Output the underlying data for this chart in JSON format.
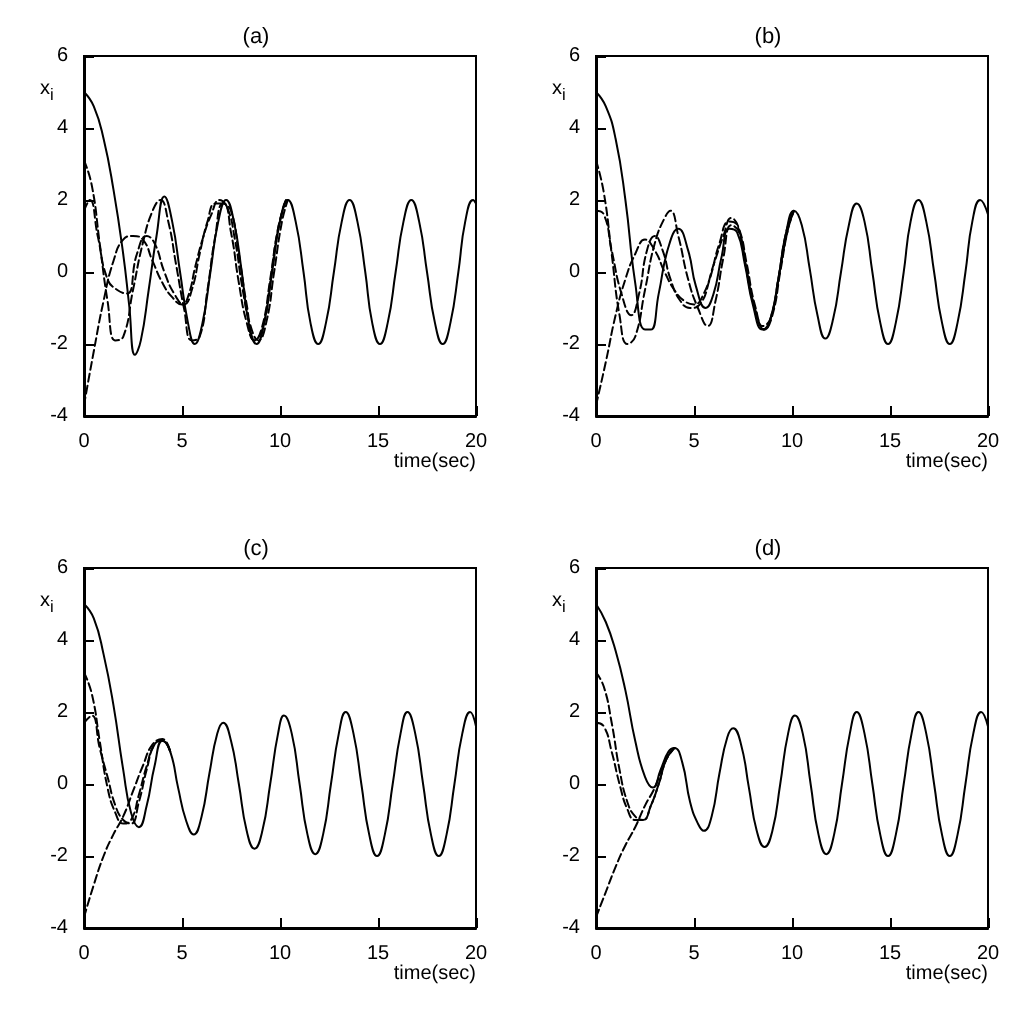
{
  "chart_data": [
    {
      "type": "line",
      "title": "(a)",
      "xlabel": "time(sec)",
      "ylabel": "x$_{i}$",
      "xlim": [
        0,
        20
      ],
      "ylim": [
        -4,
        6
      ],
      "xticks": [
        0,
        5,
        10,
        15,
        20
      ],
      "yticks": [
        -4,
        -2,
        0,
        2,
        4,
        6
      ],
      "grid": false,
      "marker": "none",
      "series": [
        {
          "color": "#000000",
          "line_style": "solid",
          "x": [
            0,
            0.5,
            1,
            1.5,
            2,
            2.3,
            2.6,
            2.9,
            3.3,
            3.7,
            4.1,
            4.5,
            4.9,
            5.3,
            5.65,
            6.05,
            6.45,
            6.85,
            7.25,
            7.65,
            8.05,
            8.4,
            8.8,
            9.2,
            9.6,
            10.0,
            10.4,
            10.8,
            11.2,
            11.55,
            11.95,
            12.35,
            12.75,
            13.15,
            13.55,
            13.95,
            14.35,
            14.7,
            15.1,
            15.5,
            15.9,
            16.3,
            16.7,
            17.1,
            17.5,
            17.9,
            18.3,
            18.7,
            19.1,
            19.45,
            19.85,
            20
          ],
          "values": [
            5,
            4.6,
            3.7,
            2.3,
            0.5,
            -0.9,
            -2.3,
            -1.9,
            -0.5,
            1.0,
            2.1,
            1.4,
            0,
            -1.4,
            -2,
            -1.4,
            0,
            1.4,
            2,
            1.4,
            0,
            -1.4,
            -2,
            -1.4,
            0,
            1.4,
            2,
            1.4,
            0,
            -1.4,
            -2,
            -1.4,
            0,
            1.4,
            2,
            1.4,
            0,
            -1.4,
            -2,
            -1.4,
            0,
            1.4,
            2,
            1.4,
            0,
            -1.4,
            -2,
            -1.4,
            0,
            1.4,
            2,
            1.9
          ]
        },
        {
          "color": "#000000",
          "line_style": "dashed",
          "x": [
            0,
            0.4,
            0.8,
            1.2,
            1.6,
            2.0,
            2.5,
            3.0,
            3.5,
            3.9,
            4.3,
            4.7,
            5.1,
            5.5,
            5.9,
            6.3,
            6.7,
            7.1,
            7.5,
            7.9,
            8.3,
            8.7,
            9.1,
            9.5,
            9.9,
            10.3
          ],
          "values": [
            3.1,
            2.4,
            0.8,
            -0.8,
            -1.9,
            -1.8,
            -0.5,
            0.8,
            1.7,
            2.0,
            1.4,
            0.2,
            -1.0,
            -1.9,
            -1.8,
            -0.5,
            1.0,
            1.9,
            1.7,
            0.5,
            -0.9,
            -1.9,
            -1.6,
            -0.3,
            1.2,
            2.0
          ]
        },
        {
          "color": "#000000",
          "line_style": "dashed",
          "x": [
            0,
            0.3,
            0.7,
            1.2,
            1.7,
            2.2,
            2.7,
            3.2,
            3.6,
            4.1,
            4.6,
            5.1,
            5.5,
            5.9,
            6.3,
            6.7,
            7.1,
            7.5,
            7.9,
            8.3,
            8.7,
            9.1,
            9.5,
            9.9,
            10.3
          ],
          "values": [
            1.7,
            2.0,
            1.0,
            -0.2,
            -0.5,
            -0.6,
            0.5,
            1.0,
            0.8,
            0.0,
            -0.6,
            -0.9,
            -0.5,
            0.5,
            1.4,
            1.9,
            1.9,
            1.1,
            -0.3,
            -1.4,
            -1.9,
            -1.5,
            -0.2,
            1.2,
            2.0
          ]
        },
        {
          "color": "#000000",
          "line_style": "dashed",
          "x": [
            0,
            0.5,
            1.0,
            1.5,
            2.0,
            2.5,
            3.0,
            3.5,
            4.0,
            4.5,
            5.0,
            5.3,
            5.7,
            6.1,
            6.5,
            6.9,
            7.3,
            7.7,
            8.1,
            8.5,
            8.9,
            9.3,
            9.7,
            10.1,
            10.4
          ],
          "values": [
            -3.7,
            -2.2,
            -0.8,
            0.3,
            0.9,
            1.0,
            0.9,
            0.3,
            -0.3,
            -0.7,
            -0.9,
            -0.7,
            0.2,
            1.0,
            1.6,
            2.0,
            1.8,
            0.9,
            -0.5,
            -1.5,
            -1.9,
            -1.4,
            0.0,
            1.4,
            2.0
          ]
        }
      ]
    },
    {
      "type": "line",
      "title": "(b)",
      "xlabel": "time(sec)",
      "ylabel": "x$_{i}$",
      "xlim": [
        0,
        20
      ],
      "ylim": [
        -4,
        6
      ],
      "xticks": [
        0,
        5,
        10,
        15,
        20
      ],
      "yticks": [
        -4,
        -2,
        0,
        2,
        4,
        6
      ],
      "grid": false,
      "marker": "none",
      "series": [
        {
          "color": "#000000",
          "line_style": "solid",
          "x": [
            0,
            0.5,
            1,
            1.5,
            2.0,
            2.5,
            2.8,
            3.2,
            3.7,
            4.2,
            4.7,
            5.1,
            5.6,
            6.0,
            6.4,
            6.8,
            7.2,
            7.6,
            8.0,
            8.5,
            8.9,
            9.3,
            9.7,
            10.1,
            10.5,
            10.9,
            11.3,
            11.7,
            12.1,
            12.5,
            12.9,
            13.3,
            13.7,
            14.1,
            14.5,
            14.9,
            15.3,
            15.7,
            16.05,
            16.45,
            16.85,
            17.25,
            17.65,
            18.05,
            18.45,
            18.85,
            19.2,
            19.6,
            20
          ],
          "values": [
            5,
            4.6,
            3.7,
            2.0,
            -0.3,
            -1.6,
            -1.6,
            -0.6,
            0.7,
            1.2,
            0.6,
            -0.4,
            -1.0,
            -0.6,
            0.4,
            1.2,
            1.1,
            0.2,
            -0.9,
            -1.6,
            -1.3,
            -0.2,
            1.1,
            1.7,
            1.3,
            0.1,
            -1.2,
            -1.85,
            -1.3,
            0,
            1.3,
            1.9,
            1.4,
            0,
            -1.4,
            -2,
            -1.4,
            0,
            1.4,
            2,
            1.4,
            0,
            -1.4,
            -2,
            -1.4,
            0,
            1.4,
            2,
            1.6
          ]
        },
        {
          "color": "#000000",
          "line_style": "dashed",
          "x": [
            0,
            0.4,
            0.8,
            1.2,
            1.6,
            2.0,
            2.5,
            3.0,
            3.5,
            3.8,
            4.2,
            4.7,
            5.2,
            5.7,
            6.1,
            6.5,
            6.9,
            7.3,
            7.7,
            8.1,
            8.6,
            9.0,
            9.4,
            9.8,
            10.1
          ],
          "values": [
            3.1,
            2.2,
            0.5,
            -1.2,
            -2.0,
            -1.8,
            -0.5,
            0.8,
            1.5,
            1.7,
            1.0,
            -0.2,
            -1.0,
            -1.5,
            -0.8,
            0.4,
            1.3,
            1.1,
            0.0,
            -1.0,
            -1.6,
            -1.1,
            0.1,
            1.2,
            1.7
          ]
        },
        {
          "color": "#000000",
          "line_style": "dashed",
          "x": [
            0,
            0.4,
            0.8,
            1.3,
            1.8,
            2.2,
            2.6,
            3.0,
            3.4,
            3.8,
            4.3,
            4.8,
            5.3,
            5.8,
            6.3,
            6.8,
            7.2,
            7.6,
            8.0,
            8.5,
            8.9,
            9.3,
            9.7,
            10.1
          ],
          "values": [
            1.7,
            1.6,
            0.6,
            -0.6,
            -1.2,
            -0.6,
            0.6,
            1.0,
            0.6,
            -0.2,
            -0.8,
            -1.0,
            -0.9,
            -0.2,
            0.8,
            1.4,
            1.3,
            0.3,
            -0.8,
            -1.5,
            -1.3,
            -0.2,
            1.1,
            1.7
          ]
        },
        {
          "color": "#000000",
          "line_style": "dashed",
          "x": [
            0,
            0.5,
            1.0,
            1.5,
            2.0,
            2.5,
            3.0,
            3.5,
            4.0,
            4.5,
            5.0,
            5.5,
            6.0,
            6.5,
            6.9,
            7.3,
            7.7,
            8.1,
            8.6,
            9.0,
            9.4,
            9.8,
            10.1
          ],
          "values": [
            -3.7,
            -2.5,
            -1.2,
            -0.2,
            0.5,
            0.9,
            0.6,
            0.0,
            -0.5,
            -0.8,
            -0.9,
            -0.6,
            0.2,
            1.0,
            1.5,
            1.2,
            0.2,
            -0.9,
            -1.6,
            -1.2,
            0.0,
            1.2,
            1.7
          ]
        }
      ]
    },
    {
      "type": "line",
      "title": "(c)",
      "xlabel": "time(sec)",
      "ylabel": "x$_{i}$",
      "xlim": [
        0,
        20
      ],
      "ylim": [
        -4,
        6
      ],
      "xticks": [
        0,
        5,
        10,
        15,
        20
      ],
      "yticks": [
        -4,
        -2,
        0,
        2,
        4,
        6
      ],
      "grid": false,
      "marker": "none",
      "series": [
        {
          "color": "#000000",
          "line_style": "solid",
          "x": [
            0,
            0.5,
            1,
            1.5,
            2,
            2.4,
            2.8,
            3.2,
            3.6,
            4.0,
            4.4,
            4.8,
            5.2,
            5.6,
            6.0,
            6.4,
            6.8,
            7.1,
            7.5,
            7.9,
            8.3,
            8.7,
            9.1,
            9.5,
            9.9,
            10.2,
            10.6,
            11.0,
            11.4,
            11.8,
            12.2,
            12.6,
            13.0,
            13.35,
            13.75,
            14.15,
            14.55,
            14.95,
            15.35,
            15.75,
            16.15,
            16.5,
            16.9,
            17.3,
            17.7,
            18.1,
            18.5,
            18.9,
            19.3,
            19.7,
            20
          ],
          "values": [
            5,
            4.6,
            3.6,
            2.2,
            0.4,
            -0.8,
            -1.2,
            -0.6,
            0.5,
            1.2,
            0.9,
            -0.1,
            -1.0,
            -1.4,
            -0.9,
            0.3,
            1.4,
            1.7,
            1.2,
            0,
            -1.3,
            -1.8,
            -1.3,
            0,
            1.4,
            1.9,
            1.4,
            0,
            -1.4,
            -1.95,
            -1.4,
            0,
            1.4,
            2,
            1.4,
            0,
            -1.4,
            -2,
            -1.4,
            0,
            1.4,
            2,
            1.4,
            0,
            -1.4,
            -2,
            -1.4,
            0,
            1.4,
            2,
            1.6
          ]
        },
        {
          "color": "#000000",
          "line_style": "dashed",
          "x": [
            0,
            0.4,
            0.8,
            1.2,
            1.6,
            2.0,
            2.4,
            2.8,
            3.2,
            3.6,
            4.0,
            4.4
          ],
          "values": [
            3.1,
            2.5,
            1.2,
            -0.1,
            -0.8,
            -1.1,
            -1.0,
            -0.3,
            0.5,
            1.1,
            1.2,
            0.9
          ]
        },
        {
          "color": "#000000",
          "line_style": "dashed",
          "x": [
            0,
            0.4,
            0.8,
            1.2,
            1.6,
            2.0,
            2.4,
            2.8,
            3.2,
            3.6,
            4.0,
            4.4
          ],
          "values": [
            1.7,
            1.9,
            1.0,
            0.2,
            -0.6,
            -1.0,
            -1.1,
            -0.5,
            0.4,
            1.1,
            1.2,
            0.9
          ]
        },
        {
          "color": "#000000",
          "line_style": "dashed",
          "x": [
            0,
            0.5,
            1.0,
            1.5,
            2.0,
            2.5,
            3.0,
            3.5,
            4.0,
            4.4
          ],
          "values": [
            -3.7,
            -2.8,
            -2.0,
            -1.4,
            -0.9,
            -0.2,
            0.5,
            1.1,
            1.25,
            0.9
          ]
        }
      ]
    },
    {
      "type": "line",
      "title": "(d)",
      "xlabel": "time(sec)",
      "ylabel": "x$_{i}$",
      "xlim": [
        0,
        20
      ],
      "ylim": [
        -4,
        6
      ],
      "xticks": [
        0,
        5,
        10,
        15,
        20
      ],
      "yticks": [
        -4,
        -2,
        0,
        2,
        4,
        6
      ],
      "grid": false,
      "marker": "none",
      "series": [
        {
          "color": "#000000",
          "line_style": "solid",
          "x": [
            0,
            0.5,
            1,
            1.5,
            2,
            2.5,
            2.9,
            3.3,
            3.7,
            4.0,
            4.4,
            4.8,
            5.2,
            5.5,
            5.9,
            6.3,
            6.7,
            7.0,
            7.4,
            7.8,
            8.2,
            8.6,
            9.0,
            9.4,
            9.8,
            10.15,
            10.55,
            10.95,
            11.35,
            11.75,
            12.15,
            12.55,
            12.95,
            13.3,
            13.7,
            14.1,
            14.5,
            14.9,
            15.3,
            15.7,
            16.1,
            16.45,
            16.85,
            17.25,
            17.65,
            18.05,
            18.45,
            18.85,
            19.25,
            19.65,
            20
          ],
          "values": [
            5,
            4.5,
            3.7,
            2.6,
            1.2,
            0.2,
            -0.1,
            0.4,
            0.9,
            1.0,
            0.6,
            -0.5,
            -1.1,
            -1.3,
            -0.9,
            0.3,
            1.3,
            1.55,
            1.1,
            -0.1,
            -1.3,
            -1.75,
            -1.3,
            0,
            1.4,
            1.9,
            1.4,
            0,
            -1.4,
            -1.95,
            -1.4,
            0,
            1.4,
            2,
            1.4,
            0,
            -1.4,
            -2,
            -1.4,
            0,
            1.4,
            2,
            1.4,
            0,
            -1.4,
            -2,
            -1.4,
            0,
            1.4,
            2,
            1.6
          ]
        },
        {
          "color": "#000000",
          "line_style": "dashed",
          "x": [
            0,
            0.4,
            0.8,
            1.2,
            1.6,
            2.0,
            2.4,
            2.8,
            3.2,
            3.6,
            4.0
          ],
          "values": [
            3.1,
            2.7,
            1.7,
            0.4,
            -0.5,
            -0.9,
            -1.0,
            -0.6,
            0.0,
            0.7,
            1.0
          ]
        },
        {
          "color": "#000000",
          "line_style": "dashed",
          "x": [
            0,
            0.4,
            0.8,
            1.2,
            1.6,
            2.0,
            2.4,
            2.8,
            3.2,
            3.6,
            4.0
          ],
          "values": [
            1.7,
            1.6,
            0.9,
            0.0,
            -0.7,
            -1.0,
            -1.0,
            -0.6,
            0.0,
            0.7,
            1.0
          ]
        },
        {
          "color": "#000000",
          "line_style": "dashed",
          "x": [
            0,
            0.5,
            1.0,
            1.5,
            2.0,
            2.5,
            3.0,
            3.5,
            4.0
          ],
          "values": [
            -3.7,
            -3.0,
            -2.3,
            -1.7,
            -1.2,
            -0.6,
            -0.1,
            0.6,
            1.0
          ]
        }
      ]
    }
  ]
}
